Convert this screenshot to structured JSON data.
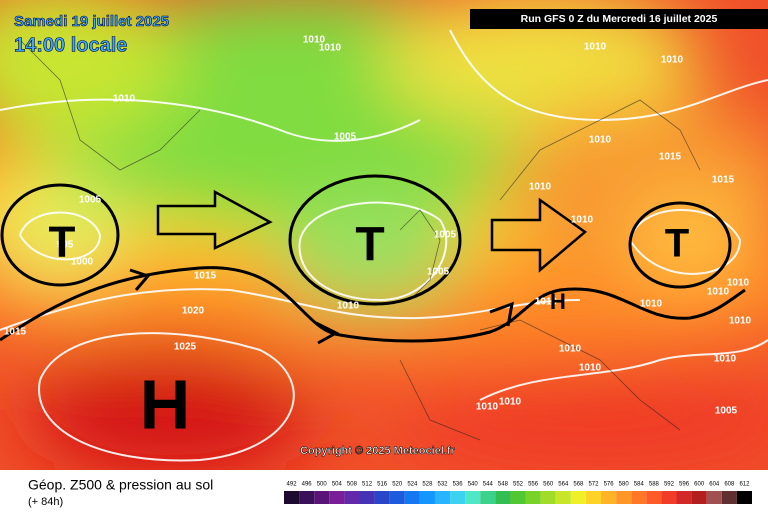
{
  "header": {
    "date": "Samedi 19 juillet 2025",
    "time": "14:00 locale",
    "run": "Run GFS 0 Z du Mercredi 16 juillet 2025"
  },
  "copyright": "Copyright © 2025 Meteociel.fr",
  "footer": {
    "title": "Géop. Z500 & pression au sol",
    "lead": "(+ 84h)"
  },
  "pressure_centers": [
    "T",
    "T",
    "T",
    "H",
    "H"
  ],
  "isobar_labels": [
    "1010",
    "1010",
    "1010",
    "1010",
    "1010",
    "1005",
    "1010",
    "1015",
    "1015",
    "1010",
    "1005",
    "1010",
    "1005",
    "995",
    "1000",
    "1015",
    "1005",
    "1010",
    "1015",
    "1020",
    "1025",
    "1010",
    "1010",
    "1010",
    "1010",
    "1010",
    "1010",
    "1010",
    "1010",
    "1010",
    "1010",
    "1005"
  ],
  "legend": [
    {
      "value": 492,
      "color": "#1e0a2e"
    },
    {
      "value": 496,
      "color": "#3c0f5a"
    },
    {
      "value": 500,
      "color": "#5a1478"
    },
    {
      "value": 504,
      "color": "#781e96"
    },
    {
      "value": 508,
      "color": "#6428aa"
    },
    {
      "value": 512,
      "color": "#4632b4"
    },
    {
      "value": 516,
      "color": "#2846c8"
    },
    {
      "value": 520,
      "color": "#1e5adc"
    },
    {
      "value": 524,
      "color": "#1478f0"
    },
    {
      "value": 528,
      "color": "#1496ff"
    },
    {
      "value": 532,
      "color": "#28b4ff"
    },
    {
      "value": 536,
      "color": "#3cd2f0"
    },
    {
      "value": 540,
      "color": "#50e6c8"
    },
    {
      "value": 544,
      "color": "#3cd28c"
    },
    {
      "value": 548,
      "color": "#32be50"
    },
    {
      "value": 552,
      "color": "#50c832"
    },
    {
      "value": 556,
      "color": "#78d228"
    },
    {
      "value": 560,
      "color": "#a0dc28"
    },
    {
      "value": 564,
      "color": "#c8e628"
    },
    {
      "value": 568,
      "color": "#f0f028"
    },
    {
      "value": 572,
      "color": "#ffd228"
    },
    {
      "value": 576,
      "color": "#ffb428"
    },
    {
      "value": 580,
      "color": "#ff9628"
    },
    {
      "value": 584,
      "color": "#ff7828"
    },
    {
      "value": 588,
      "color": "#ff5a28"
    },
    {
      "value": 592,
      "color": "#f03c28"
    },
    {
      "value": 596,
      "color": "#d22828"
    },
    {
      "value": 600,
      "color": "#b41e1e"
    },
    {
      "value": 604,
      "color": "#a05050"
    },
    {
      "value": 608,
      "color": "#603030"
    },
    {
      "value": 612,
      "color": "#000000"
    }
  ]
}
